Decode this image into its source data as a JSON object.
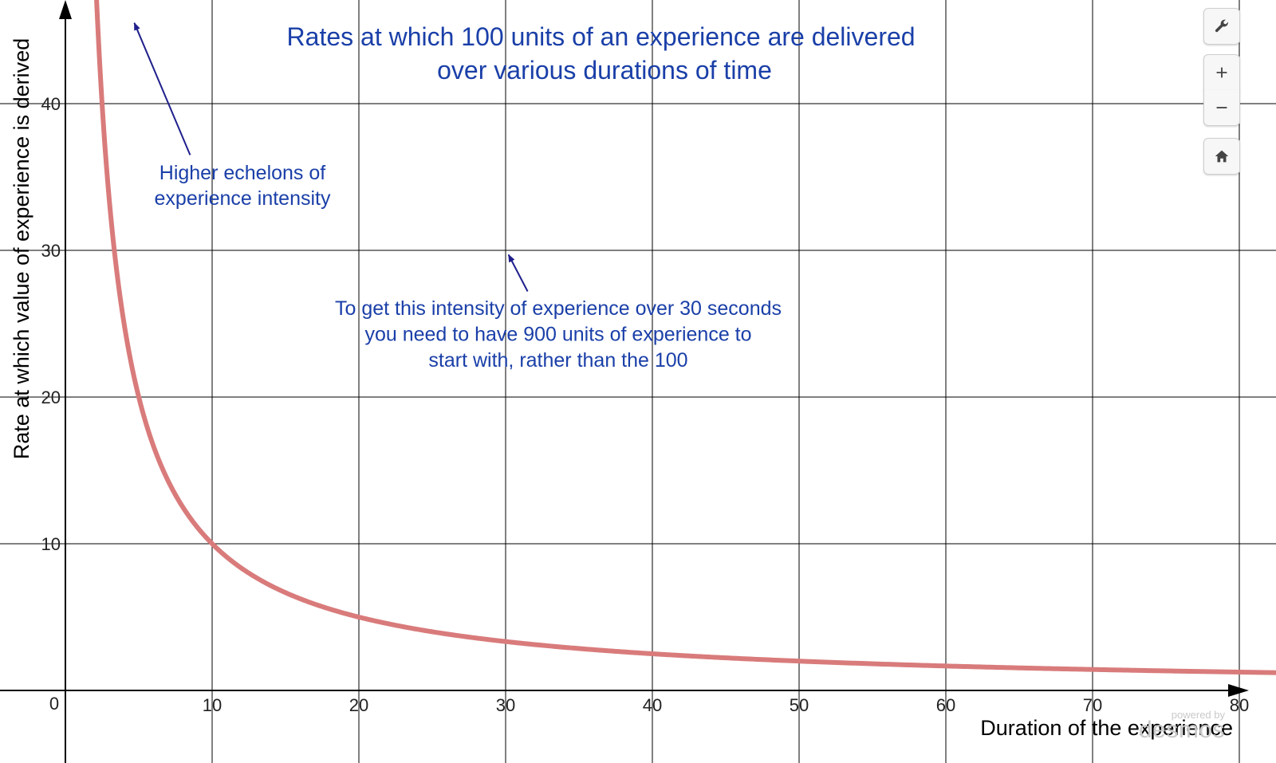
{
  "chart_data": {
    "type": "line",
    "title_lines": [
      "Rates at which 100 units of an experience are delivered",
      "over various durations of time"
    ],
    "xlabel": "Duration of the experience",
    "ylabel": "Rate at which value of experience is derived",
    "xlim": [
      0,
      80
    ],
    "ylim": [
      0,
      45
    ],
    "grid": true,
    "x_ticks": [
      "10",
      "20",
      "30",
      "40",
      "50",
      "60",
      "70",
      "80"
    ],
    "y_ticks": [
      "10",
      "20",
      "30",
      "40"
    ],
    "origin_label": "0",
    "series": [
      {
        "function": "y = 100 / x",
        "x": [
          2.3,
          3,
          4,
          5,
          6,
          8,
          10,
          12,
          15,
          20,
          25,
          30,
          40,
          50,
          60,
          70,
          80
        ],
        "y": [
          43.5,
          33.3,
          25,
          20,
          16.7,
          12.5,
          10,
          8.33,
          6.67,
          5,
          4,
          3.33,
          2.5,
          2,
          1.67,
          1.43,
          1.25
        ],
        "color": "#d97b7b"
      }
    ],
    "annotations": [
      {
        "lines": [
          "Higher echelons of",
          "experience intensity"
        ],
        "arrow_from": [
          8.5,
          36.5
        ],
        "arrow_to": [
          4.7,
          45.5
        ]
      },
      {
        "lines": [
          "To get this intensity of experience over 30 seconds",
          "you need to have 900 units of experience to",
          "start with, rather than the 100"
        ],
        "arrow_from": [
          31.5,
          27.2
        ],
        "arrow_to": [
          30.2,
          29.7
        ]
      }
    ]
  },
  "toolbar": {
    "settings": "wrench-icon",
    "zoom_in": "plus-icon",
    "zoom_out": "minus-icon",
    "home": "home-icon"
  },
  "branding": {
    "small": "powered by",
    "big": "desmos"
  }
}
